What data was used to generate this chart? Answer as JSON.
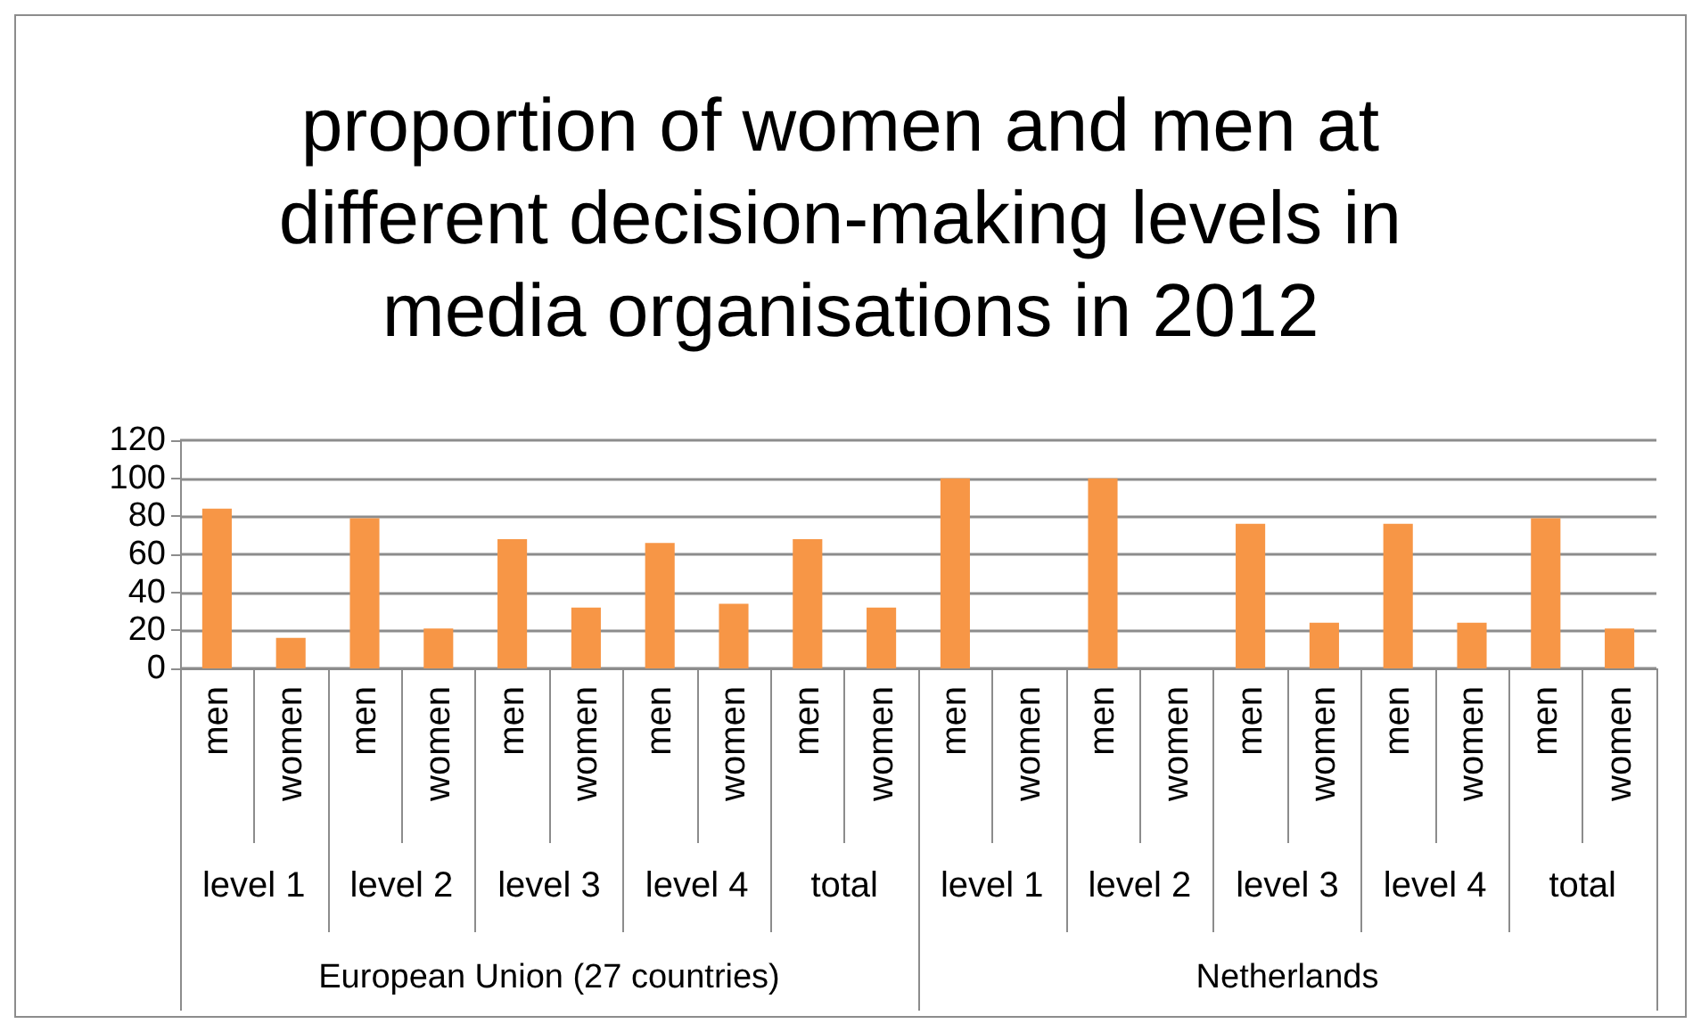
{
  "chart_data": {
    "type": "bar",
    "title": "proportion of women and men at different decision-making levels in media organisations in 2012",
    "categories": [
      "men",
      "women",
      "men",
      "women",
      "men",
      "women",
      "men",
      "women",
      "men",
      "women",
      "men",
      "women",
      "men",
      "women",
      "men",
      "women",
      "men",
      "women",
      "men",
      "women"
    ],
    "values": [
      84,
      16,
      79,
      21,
      68,
      32,
      66,
      34,
      68,
      32,
      100,
      0,
      100,
      0,
      76,
      24,
      76,
      24,
      79,
      21
    ],
    "color": "#f79646",
    "ylim": [
      0,
      120
    ],
    "yticks": [
      0,
      20,
      40,
      60,
      80,
      100,
      120
    ],
    "grid": "y",
    "annotations": [
      "level 1",
      "level 2",
      "level 3",
      "level 4",
      "total",
      "level 1",
      "level 2",
      "level 3",
      "level 4",
      "total",
      "European Union (27 countries)",
      "Netherlands"
    ]
  }
}
